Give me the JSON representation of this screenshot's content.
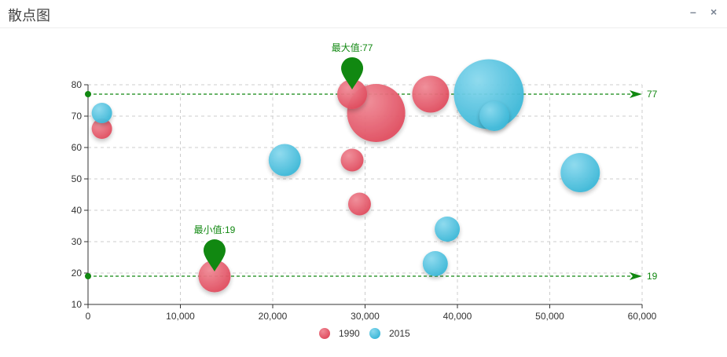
{
  "window": {
    "title": "散点图",
    "minimize_glyph": "–",
    "close_glyph": "×"
  },
  "colors": {
    "series_1990": "#e35b6a",
    "series_2015": "#4ec5e0",
    "markline": "#118811",
    "axis": "#333333",
    "grid": "#cccccc"
  },
  "chart_data": {
    "type": "scatter",
    "title": "散点图",
    "xlim": [
      0,
      60000
    ],
    "ylim": [
      10,
      80
    ],
    "x_ticks": [
      0,
      10000,
      20000,
      30000,
      40000,
      50000,
      60000
    ],
    "x_tick_labels": [
      "0",
      "10,000",
      "20,000",
      "30,000",
      "40,000",
      "50,000",
      "60,000"
    ],
    "y_ticks": [
      10,
      20,
      30,
      40,
      50,
      60,
      70,
      80
    ],
    "y_tick_labels": [
      "10",
      "20",
      "30",
      "40",
      "50",
      "60",
      "70",
      "80"
    ],
    "grid": true,
    "legend_position": "bottom",
    "series": [
      {
        "name": "1990",
        "color": "#e35b6a",
        "points": [
          {
            "x": 1500,
            "y": 66,
            "size": 0.2
          },
          {
            "x": 13700,
            "y": 19,
            "size": 0.45
          },
          {
            "x": 28600,
            "y": 77,
            "size": 0.4
          },
          {
            "x": 28600,
            "y": 56,
            "size": 0.25
          },
          {
            "x": 29400,
            "y": 42,
            "size": 0.25
          },
          {
            "x": 31200,
            "y": 71,
            "size": 1.0
          },
          {
            "x": 37100,
            "y": 77,
            "size": 0.55
          }
        ]
      },
      {
        "name": "2015",
        "color": "#4ec5e0",
        "points": [
          {
            "x": 1500,
            "y": 71,
            "size": 0.2
          },
          {
            "x": 21300,
            "y": 56,
            "size": 0.45
          },
          {
            "x": 37600,
            "y": 23,
            "size": 0.3
          },
          {
            "x": 38900,
            "y": 34,
            "size": 0.3
          },
          {
            "x": 44000,
            "y": 70,
            "size": 0.4
          },
          {
            "x": 43400,
            "y": 77,
            "size": 1.25
          },
          {
            "x": 53300,
            "y": 52,
            "size": 0.6
          }
        ]
      }
    ],
    "mark_points": [
      {
        "label": "最大值:77",
        "x": 28600,
        "y": 77
      },
      {
        "label": "最小值:19",
        "x": 13700,
        "y": 19
      }
    ],
    "mark_lines": [
      {
        "value": 77,
        "label": "77"
      },
      {
        "value": 19,
        "label": "19"
      }
    ]
  }
}
